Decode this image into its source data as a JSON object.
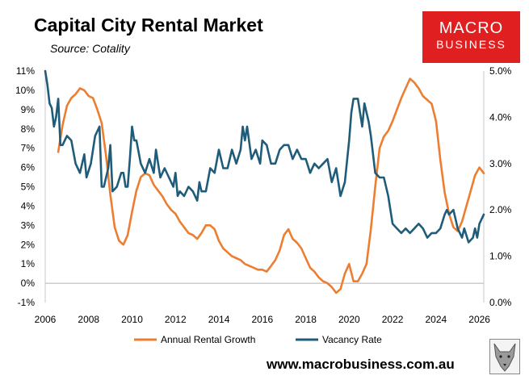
{
  "header": {
    "title": "Capital City Rental Market",
    "source": "Source: Cotality"
  },
  "logo": {
    "line1": "MACRO",
    "line2": "BUSINESS",
    "color": "#e02020"
  },
  "footer": {
    "website": "www.macrobusiness.com.au"
  },
  "chart_data": {
    "type": "line",
    "title": "Capital City Rental Market",
    "subtitle": "Source: Cotality",
    "x_ticks": [
      "2006",
      "2008",
      "2010",
      "2012",
      "2014",
      "2016",
      "2018",
      "2020",
      "2022",
      "2024",
      "2026"
    ],
    "xlim": [
      2006,
      2026.2
    ],
    "y_left": {
      "ylim": [
        -1,
        11
      ],
      "ticks": [
        "-1%",
        "0%",
        "1%",
        "2%",
        "3%",
        "4%",
        "5%",
        "6%",
        "7%",
        "8%",
        "9%",
        "10%",
        "11%"
      ]
    },
    "y_right": {
      "ylim": [
        0,
        5
      ],
      "ticks": [
        "0.0%",
        "1.0%",
        "2.0%",
        "3.0%",
        "4.0%",
        "5.0%"
      ]
    },
    "legend_position": "bottom",
    "series": [
      {
        "name": "Annual Rental Growth",
        "axis": "left",
        "color": "#ED7D31",
        "points": [
          [
            2006.6,
            6.8
          ],
          [
            2006.7,
            7.5
          ],
          [
            2006.8,
            8.2
          ],
          [
            2007.0,
            9.2
          ],
          [
            2007.2,
            9.6
          ],
          [
            2007.4,
            9.8
          ],
          [
            2007.6,
            10.1
          ],
          [
            2007.8,
            10.0
          ],
          [
            2008.0,
            9.7
          ],
          [
            2008.2,
            9.6
          ],
          [
            2008.4,
            9.0
          ],
          [
            2008.6,
            8.3
          ],
          [
            2008.8,
            6.6
          ],
          [
            2009.0,
            4.6
          ],
          [
            2009.2,
            2.9
          ],
          [
            2009.4,
            2.2
          ],
          [
            2009.6,
            2.0
          ],
          [
            2009.8,
            2.5
          ],
          [
            2010.0,
            3.7
          ],
          [
            2010.2,
            4.8
          ],
          [
            2010.4,
            5.5
          ],
          [
            2010.6,
            5.7
          ],
          [
            2010.8,
            5.6
          ],
          [
            2011.0,
            5.1
          ],
          [
            2011.2,
            4.8
          ],
          [
            2011.4,
            4.5
          ],
          [
            2011.6,
            4.1
          ],
          [
            2011.8,
            3.8
          ],
          [
            2012.0,
            3.6
          ],
          [
            2012.2,
            3.2
          ],
          [
            2012.4,
            2.9
          ],
          [
            2012.6,
            2.6
          ],
          [
            2012.8,
            2.5
          ],
          [
            2013.0,
            2.3
          ],
          [
            2013.2,
            2.6
          ],
          [
            2013.4,
            3.0
          ],
          [
            2013.6,
            3.0
          ],
          [
            2013.8,
            2.8
          ],
          [
            2014.0,
            2.2
          ],
          [
            2014.2,
            1.8
          ],
          [
            2014.4,
            1.6
          ],
          [
            2014.6,
            1.4
          ],
          [
            2014.8,
            1.3
          ],
          [
            2015.0,
            1.2
          ],
          [
            2015.2,
            1.0
          ],
          [
            2015.4,
            0.9
          ],
          [
            2015.6,
            0.8
          ],
          [
            2015.8,
            0.7
          ],
          [
            2016.0,
            0.7
          ],
          [
            2016.2,
            0.6
          ],
          [
            2016.4,
            0.9
          ],
          [
            2016.6,
            1.2
          ],
          [
            2016.8,
            1.7
          ],
          [
            2017.0,
            2.5
          ],
          [
            2017.2,
            2.8
          ],
          [
            2017.4,
            2.3
          ],
          [
            2017.6,
            2.1
          ],
          [
            2017.8,
            1.8
          ],
          [
            2018.0,
            1.3
          ],
          [
            2018.2,
            0.8
          ],
          [
            2018.4,
            0.6
          ],
          [
            2018.6,
            0.3
          ],
          [
            2018.8,
            0.1
          ],
          [
            2019.0,
            0.0
          ],
          [
            2019.2,
            -0.2
          ],
          [
            2019.4,
            -0.5
          ],
          [
            2019.6,
            -0.3
          ],
          [
            2019.8,
            0.5
          ],
          [
            2020.0,
            1.0
          ],
          [
            2020.2,
            0.1
          ],
          [
            2020.4,
            0.1
          ],
          [
            2020.6,
            0.5
          ],
          [
            2020.8,
            1.0
          ],
          [
            2021.0,
            2.8
          ],
          [
            2021.2,
            5.0
          ],
          [
            2021.4,
            7.0
          ],
          [
            2021.6,
            7.6
          ],
          [
            2021.8,
            7.9
          ],
          [
            2022.0,
            8.4
          ],
          [
            2022.2,
            9.0
          ],
          [
            2022.4,
            9.6
          ],
          [
            2022.6,
            10.1
          ],
          [
            2022.8,
            10.6
          ],
          [
            2023.0,
            10.4
          ],
          [
            2023.2,
            10.1
          ],
          [
            2023.4,
            9.7
          ],
          [
            2023.6,
            9.5
          ],
          [
            2023.8,
            9.3
          ],
          [
            2024.0,
            8.4
          ],
          [
            2024.2,
            6.4
          ],
          [
            2024.4,
            4.7
          ],
          [
            2024.6,
            3.6
          ],
          [
            2024.8,
            2.9
          ],
          [
            2025.0,
            2.7
          ],
          [
            2025.2,
            3.2
          ],
          [
            2025.4,
            4.0
          ],
          [
            2025.6,
            4.8
          ],
          [
            2025.8,
            5.6
          ],
          [
            2026.0,
            6.0
          ],
          [
            2026.2,
            5.7
          ]
        ]
      },
      {
        "name": "Vacancy Rate",
        "axis": "right",
        "color": "#1F5C7A",
        "points": [
          [
            2006.0,
            5.0
          ],
          [
            2006.1,
            4.7
          ],
          [
            2006.2,
            4.3
          ],
          [
            2006.3,
            4.2
          ],
          [
            2006.4,
            3.8
          ],
          [
            2006.5,
            4.0
          ],
          [
            2006.6,
            4.4
          ],
          [
            2006.7,
            3.4
          ],
          [
            2006.8,
            3.4
          ],
          [
            2006.9,
            3.5
          ],
          [
            2007.0,
            3.6
          ],
          [
            2007.2,
            3.5
          ],
          [
            2007.4,
            3.0
          ],
          [
            2007.6,
            2.8
          ],
          [
            2007.8,
            3.2
          ],
          [
            2007.9,
            2.7
          ],
          [
            2008.1,
            3.0
          ],
          [
            2008.3,
            3.6
          ],
          [
            2008.5,
            3.8
          ],
          [
            2008.6,
            2.5
          ],
          [
            2008.7,
            2.5
          ],
          [
            2008.9,
            2.9
          ],
          [
            2009.0,
            3.4
          ],
          [
            2009.1,
            2.4
          ],
          [
            2009.3,
            2.5
          ],
          [
            2009.5,
            2.8
          ],
          [
            2009.6,
            2.8
          ],
          [
            2009.7,
            2.5
          ],
          [
            2009.8,
            2.5
          ],
          [
            2009.9,
            3.1
          ],
          [
            2010.0,
            3.8
          ],
          [
            2010.1,
            3.5
          ],
          [
            2010.2,
            3.5
          ],
          [
            2010.4,
            3.0
          ],
          [
            2010.6,
            2.8
          ],
          [
            2010.8,
            3.1
          ],
          [
            2011.0,
            2.8
          ],
          [
            2011.1,
            3.3
          ],
          [
            2011.3,
            2.7
          ],
          [
            2011.5,
            2.9
          ],
          [
            2011.7,
            2.7
          ],
          [
            2011.9,
            2.5
          ],
          [
            2012.0,
            2.8
          ],
          [
            2012.1,
            2.3
          ],
          [
            2012.2,
            2.4
          ],
          [
            2012.4,
            2.3
          ],
          [
            2012.6,
            2.5
          ],
          [
            2012.8,
            2.4
          ],
          [
            2013.0,
            2.2
          ],
          [
            2013.1,
            2.6
          ],
          [
            2013.2,
            2.4
          ],
          [
            2013.4,
            2.4
          ],
          [
            2013.6,
            2.9
          ],
          [
            2013.8,
            2.8
          ],
          [
            2014.0,
            3.3
          ],
          [
            2014.2,
            2.9
          ],
          [
            2014.4,
            2.9
          ],
          [
            2014.6,
            3.3
          ],
          [
            2014.8,
            3.0
          ],
          [
            2015.0,
            3.3
          ],
          [
            2015.1,
            3.8
          ],
          [
            2015.2,
            3.5
          ],
          [
            2015.3,
            3.8
          ],
          [
            2015.5,
            3.1
          ],
          [
            2015.7,
            3.3
          ],
          [
            2015.9,
            3.0
          ],
          [
            2016.0,
            3.5
          ],
          [
            2016.2,
            3.4
          ],
          [
            2016.4,
            3.0
          ],
          [
            2016.6,
            3.0
          ],
          [
            2016.8,
            3.3
          ],
          [
            2017.0,
            3.4
          ],
          [
            2017.2,
            3.4
          ],
          [
            2017.4,
            3.1
          ],
          [
            2017.6,
            3.3
          ],
          [
            2017.8,
            3.1
          ],
          [
            2018.0,
            3.1
          ],
          [
            2018.2,
            2.8
          ],
          [
            2018.4,
            3.0
          ],
          [
            2018.6,
            2.9
          ],
          [
            2018.8,
            3.0
          ],
          [
            2019.0,
            3.1
          ],
          [
            2019.2,
            2.6
          ],
          [
            2019.4,
            2.9
          ],
          [
            2019.6,
            2.3
          ],
          [
            2019.8,
            2.6
          ],
          [
            2020.0,
            3.5
          ],
          [
            2020.1,
            4.1
          ],
          [
            2020.2,
            4.4
          ],
          [
            2020.4,
            4.4
          ],
          [
            2020.6,
            3.8
          ],
          [
            2020.7,
            4.3
          ],
          [
            2020.9,
            3.9
          ],
          [
            2021.0,
            3.6
          ],
          [
            2021.2,
            2.8
          ],
          [
            2021.4,
            2.7
          ],
          [
            2021.6,
            2.7
          ],
          [
            2021.8,
            2.3
          ],
          [
            2022.0,
            1.7
          ],
          [
            2022.2,
            1.6
          ],
          [
            2022.4,
            1.5
          ],
          [
            2022.6,
            1.6
          ],
          [
            2022.8,
            1.5
          ],
          [
            2023.0,
            1.6
          ],
          [
            2023.2,
            1.7
          ],
          [
            2023.4,
            1.6
          ],
          [
            2023.6,
            1.4
          ],
          [
            2023.8,
            1.5
          ],
          [
            2024.0,
            1.5
          ],
          [
            2024.2,
            1.6
          ],
          [
            2024.4,
            1.9
          ],
          [
            2024.5,
            2.0
          ],
          [
            2024.6,
            1.9
          ],
          [
            2024.8,
            2.0
          ],
          [
            2024.9,
            1.8
          ],
          [
            2025.0,
            1.6
          ],
          [
            2025.2,
            1.4
          ],
          [
            2025.3,
            1.6
          ],
          [
            2025.5,
            1.3
          ],
          [
            2025.7,
            1.4
          ],
          [
            2025.8,
            1.6
          ],
          [
            2025.9,
            1.4
          ],
          [
            2026.0,
            1.7
          ],
          [
            2026.1,
            1.8
          ],
          [
            2026.2,
            1.9
          ]
        ]
      }
    ]
  }
}
